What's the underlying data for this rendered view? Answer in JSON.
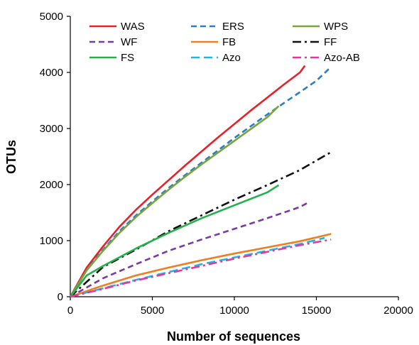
{
  "chart_data": {
    "type": "line",
    "title": "",
    "xlabel": "Number of sequences",
    "ylabel": "OTUs",
    "xlim": [
      0,
      20000
    ],
    "ylim": [
      0,
      5000
    ],
    "xticks": [
      0,
      5000,
      10000,
      15000,
      20000
    ],
    "yticks": [
      0,
      1000,
      2000,
      3000,
      4000,
      5000
    ],
    "grid": false,
    "legend_position": "top, inside plot, 3 columns",
    "series": [
      {
        "name": "WAS",
        "color": "#e8202a",
        "dash": "solid",
        "x": [
          0,
          1000,
          2000,
          3000,
          4000,
          5000,
          6000,
          7000,
          8000,
          9000,
          10000,
          11000,
          12000,
          13000,
          14000,
          14300
        ],
        "y": [
          0,
          520,
          900,
          1250,
          1550,
          1820,
          2080,
          2340,
          2590,
          2840,
          3080,
          3320,
          3550,
          3780,
          4000,
          4120
        ]
      },
      {
        "name": "ERS",
        "color": "#2d7fc1",
        "dash": "dashed",
        "x": [
          0,
          1000,
          2000,
          3000,
          4000,
          5000,
          6000,
          7000,
          8000,
          9000,
          10000,
          11000,
          12000,
          13000,
          14000,
          15000,
          15900
        ],
        "y": [
          0,
          480,
          840,
          1170,
          1450,
          1700,
          1940,
          2170,
          2390,
          2610,
          2830,
          3040,
          3250,
          3450,
          3650,
          3850,
          4100
        ]
      },
      {
        "name": "WPS",
        "color": "#7aa53c",
        "dash": "solid",
        "x": [
          0,
          1000,
          2000,
          3000,
          4000,
          5000,
          6000,
          7000,
          8000,
          9000,
          10000,
          11000,
          12000,
          12700
        ],
        "y": [
          0,
          470,
          820,
          1140,
          1420,
          1670,
          1910,
          2140,
          2360,
          2570,
          2780,
          2990,
          3200,
          3400
        ]
      },
      {
        "name": "WF",
        "color": "#7b3aa3",
        "dash": "dashed",
        "x": [
          0,
          2000,
          4000,
          6000,
          8000,
          10000,
          12000,
          14000,
          14500
        ],
        "y": [
          0,
          330,
          580,
          820,
          1020,
          1210,
          1400,
          1600,
          1680
        ]
      },
      {
        "name": "FB",
        "color": "#f07d1e",
        "dash": "solid",
        "x": [
          0,
          2000,
          4000,
          6000,
          8000,
          10000,
          12000,
          14000,
          15900
        ],
        "y": [
          0,
          200,
          380,
          520,
          650,
          770,
          880,
          990,
          1120
        ]
      },
      {
        "name": "FF",
        "color": "#111111",
        "dash": "dashdot",
        "x": [
          0,
          2000,
          4000,
          6000,
          8000,
          10000,
          12000,
          14000,
          15900
        ],
        "y": [
          0,
          530,
          840,
          1170,
          1450,
          1730,
          1990,
          2260,
          2580
        ]
      },
      {
        "name": "FS",
        "color": "#22b24c",
        "dash": "solid",
        "x": [
          0,
          1000,
          2000,
          4000,
          6000,
          8000,
          10000,
          12000,
          12700
        ],
        "y": [
          0,
          380,
          550,
          860,
          1140,
          1400,
          1630,
          1860,
          1990
        ]
      },
      {
        "name": "Azo",
        "color": "#1fb6e6",
        "dash": "longdash",
        "x": [
          0,
          2000,
          4000,
          6000,
          8000,
          10000,
          12000,
          14000,
          15500
        ],
        "y": [
          0,
          150,
          300,
          440,
          580,
          700,
          820,
          940,
          1050
        ]
      },
      {
        "name": "Azo-AB",
        "color": "#e8359a",
        "dash": "dashdot",
        "x": [
          0,
          2000,
          4000,
          6000,
          8000,
          10000,
          12000,
          14000,
          15900
        ],
        "y": [
          0,
          140,
          290,
          420,
          550,
          680,
          800,
          920,
          1020
        ]
      }
    ]
  }
}
